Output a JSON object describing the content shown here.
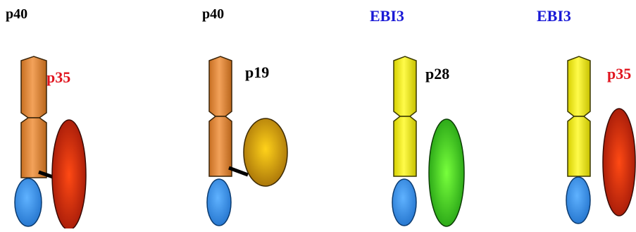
{
  "colors": {
    "black_label": "#000000",
    "ebi3_label": "#1a1ad6",
    "p35_label": "#e0141e",
    "p40_fill": "#ec8f3c",
    "p40_dark": "#b9651b",
    "ebi3_fill": "#f2ee12",
    "ebi3_dark": "#b9b400",
    "domain_fill": "#2d8be8",
    "p35_fill": "#e0331a",
    "p19_fill": "#e7ae10",
    "p28_fill": "#45d628"
  },
  "complexes": [
    {
      "chain_label": "p40",
      "partner_label": "p35",
      "chain_type": "p40",
      "partner": "p35",
      "disulfide": true
    },
    {
      "chain_label": "p40",
      "partner_label": "p19",
      "chain_type": "p40",
      "partner": "p19",
      "disulfide": true
    },
    {
      "chain_label": "EBI3",
      "partner_label": "p28",
      "chain_type": "ebi3",
      "partner": "p28",
      "disulfide": false
    },
    {
      "chain_label": "EBI3",
      "partner_label": "p35",
      "chain_type": "ebi3",
      "partner": "p35",
      "disulfide": false
    }
  ]
}
